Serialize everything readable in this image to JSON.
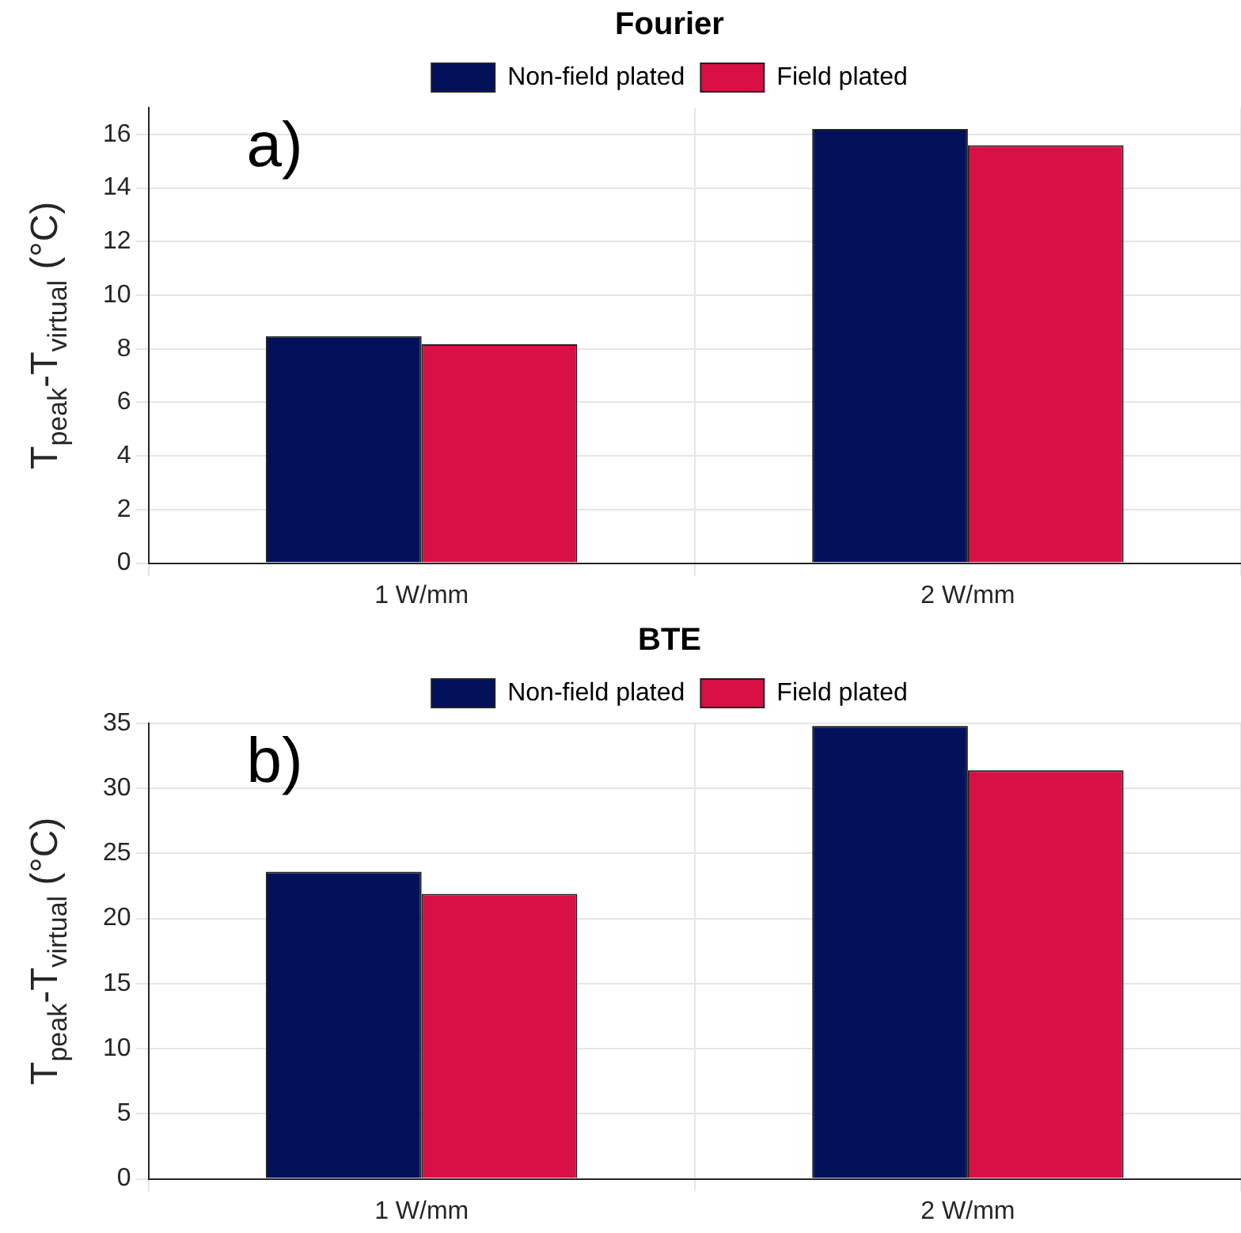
{
  "chart_data": [
    {
      "type": "bar",
      "title": "Fourier",
      "ylabel": "T$_{peak}$-T$_{virtual}$ (°C)",
      "categories": [
        "1 W/mm",
        "2 W/mm"
      ],
      "series": [
        {
          "name": "Non-field plated",
          "color": "#03105a",
          "values": [
            8.47,
            16.2
          ]
        },
        {
          "name": "Field plated",
          "color": "#d91045",
          "values": [
            8.17,
            15.6
          ]
        }
      ],
      "ylim": [
        0,
        17
      ],
      "yticks": [
        0,
        2,
        4,
        6,
        8,
        10,
        12,
        14,
        16
      ],
      "grid": true,
      "legend": "top",
      "annotations": [
        "a)"
      ]
    },
    {
      "type": "bar",
      "title": "BTE",
      "ylabel": "T$_{peak}$-T$_{virtual}$ (°C)",
      "categories": [
        "1 W/mm",
        "2 W/mm"
      ],
      "series": [
        {
          "name": "Non-field plated",
          "color": "#03105a",
          "values": [
            23.6,
            34.8
          ]
        },
        {
          "name": "Field plated",
          "color": "#d91045",
          "values": [
            21.9,
            31.4
          ]
        }
      ],
      "ylim": [
        0,
        35
      ],
      "yticks": [
        0,
        5,
        10,
        15,
        20,
        25,
        30,
        35
      ],
      "grid": true,
      "legend": "top",
      "annotations": [
        "b)"
      ]
    }
  ]
}
